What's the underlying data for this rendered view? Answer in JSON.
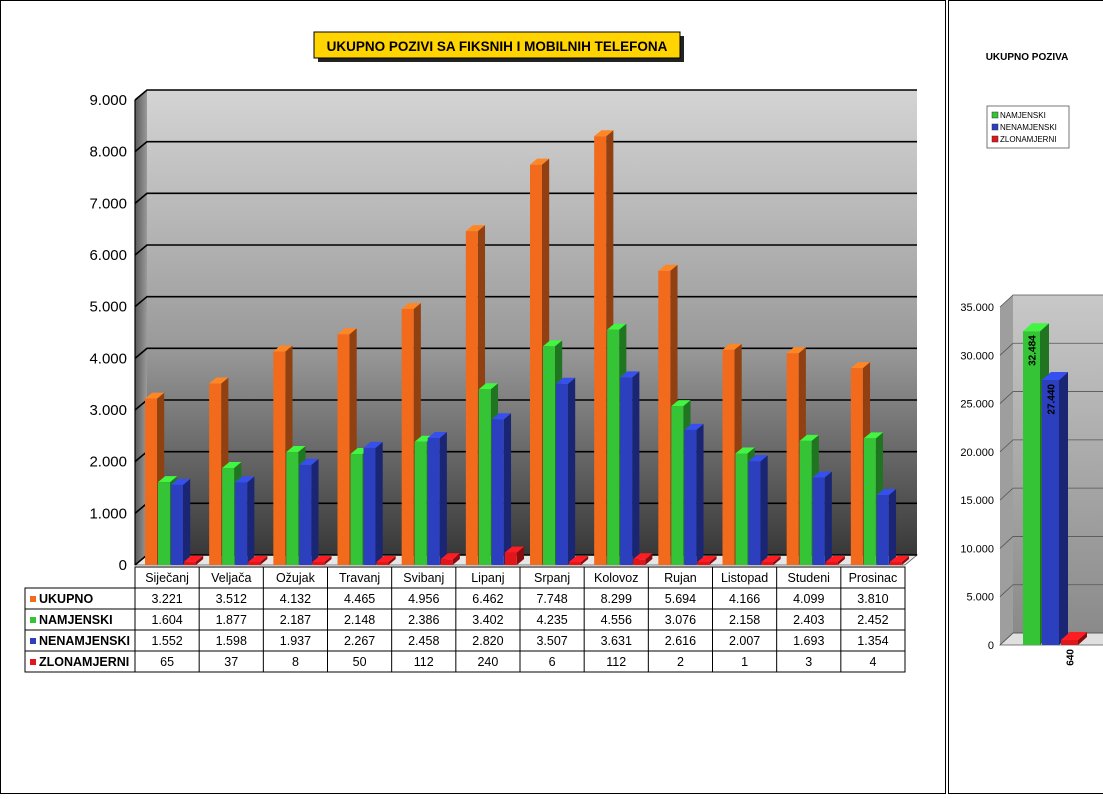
{
  "chart_data": [
    {
      "type": "bar",
      "title": "UKUPNO POZIVI SA FIKSNIH I MOBILNIH TELEFONA",
      "categories": [
        "Siječanj",
        "Veljača",
        "Ožujak",
        "Travanj",
        "Svibanj",
        "Lipanj",
        "Srpanj",
        "Kolovoz",
        "Rujan",
        "Listopad",
        "Studeni",
        "Prosinac"
      ],
      "series": [
        {
          "name": "UKUPNO",
          "color": "#f26b1d",
          "values": [
            3221,
            3512,
            4132,
            4465,
            4956,
            6462,
            7748,
            8299,
            5694,
            4166,
            4099,
            3810
          ],
          "labels": [
            "3.221",
            "3.512",
            "4.132",
            "4.465",
            "4.956",
            "6.462",
            "7.748",
            "8.299",
            "5.694",
            "4.166",
            "4.099",
            "3.810"
          ]
        },
        {
          "name": "NAMJENSKI",
          "color": "#35c435",
          "values": [
            1604,
            1877,
            2187,
            2148,
            2386,
            3402,
            4235,
            4556,
            3076,
            2158,
            2403,
            2452
          ],
          "labels": [
            "1.604",
            "1.877",
            "2.187",
            "2.148",
            "2.386",
            "3.402",
            "4.235",
            "4.556",
            "3.076",
            "2.158",
            "2.403",
            "2.452"
          ]
        },
        {
          "name": "NENAMJENSKI",
          "color": "#2b3fbf",
          "values": [
            1552,
            1598,
            1937,
            2267,
            2458,
            2820,
            3507,
            3631,
            2616,
            2007,
            1693,
            1354
          ],
          "labels": [
            "1.552",
            "1.598",
            "1.937",
            "2.267",
            "2.458",
            "2.820",
            "3.507",
            "3.631",
            "2.616",
            "2.007",
            "1.693",
            "1.354"
          ]
        },
        {
          "name": "ZLONAMJERNI",
          "color": "#e0161b",
          "values": [
            65,
            37,
            8,
            50,
            112,
            240,
            6,
            112,
            2,
            1,
            3,
            4
          ],
          "labels": [
            "65",
            "37",
            "8",
            "50",
            "112",
            "240",
            "6",
            "112",
            "2",
            "1",
            "3",
            "4"
          ]
        }
      ],
      "ylim": [
        0,
        9000
      ],
      "yticks": [
        "0",
        "1.000",
        "2.000",
        "3.000",
        "4.000",
        "5.000",
        "6.000",
        "7.000",
        "8.000",
        "9.000"
      ],
      "grid": true,
      "legend": "data table"
    },
    {
      "type": "bar",
      "title": "UKUPNO POZIVA",
      "series": [
        {
          "name": "NAMJENSKI",
          "color": "#35c435",
          "value": 32484,
          "label": "32.484"
        },
        {
          "name": "NENAMJENSKI",
          "color": "#2b3fbf",
          "value": 27440,
          "label": "27.440"
        },
        {
          "name": "ZLONAMJERNI",
          "color": "#e0161b",
          "value": 640,
          "label": "640"
        }
      ],
      "ylim": [
        0,
        35000
      ],
      "yticks": [
        "0",
        "5.000",
        "10.000",
        "15.000",
        "20.000",
        "25.000",
        "30.000",
        "35.000"
      ],
      "legend_entries": [
        "NAMJENSKI",
        "NENAMJENSKI",
        "ZLONAMJERNI"
      ],
      "legend": "top"
    }
  ]
}
